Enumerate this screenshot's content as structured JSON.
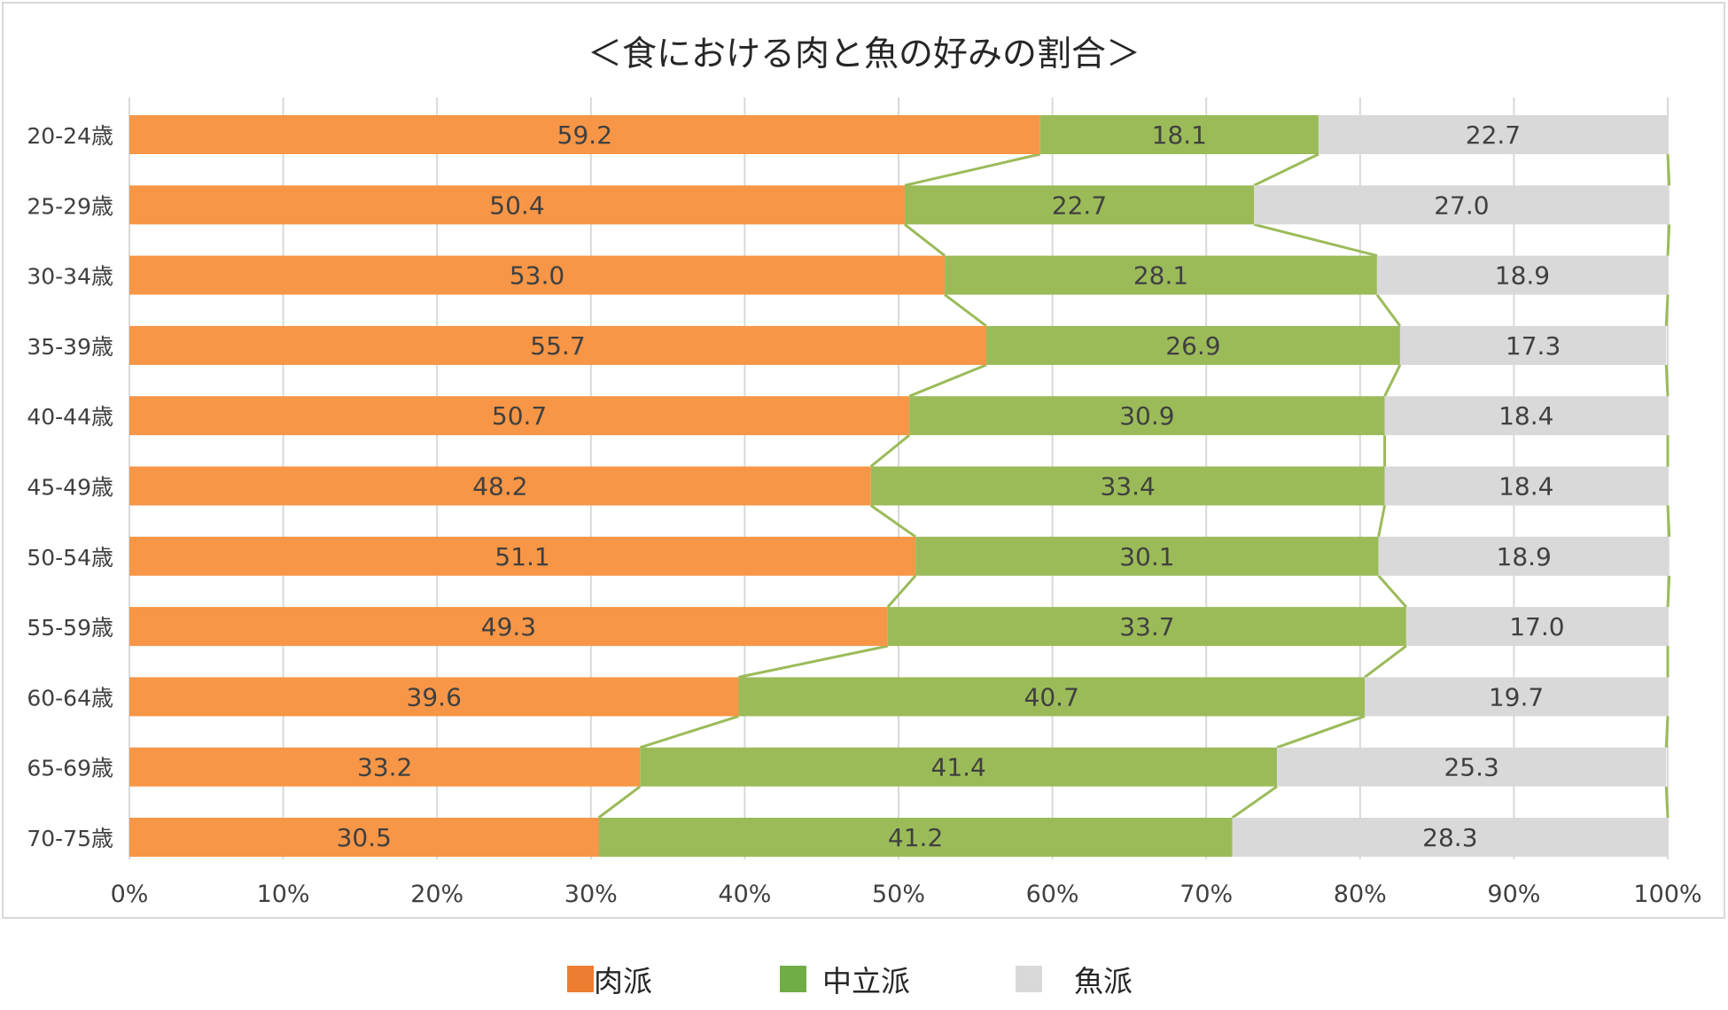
{
  "chart_data": {
    "type": "bar",
    "orientation": "horizontal",
    "stacking": "percent",
    "title": "＜食における肉と魚の好みの割合＞",
    "categories": [
      "20-24歳",
      "25-29歳",
      "30-34歳",
      "35-39歳",
      "40-44歳",
      "45-49歳",
      "50-54歳",
      "55-59歳",
      "60-64歳",
      "65-69歳",
      "70-75歳"
    ],
    "series": [
      {
        "name": "肉派",
        "color": "#f79646",
        "values": [
          59.2,
          50.4,
          53.0,
          55.7,
          50.7,
          48.2,
          51.1,
          49.3,
          39.6,
          33.2,
          30.5
        ],
        "labels": [
          "59.2",
          "50.4",
          "53.0",
          "55.7",
          "50.7",
          "48.2",
          "51.1",
          "49.3",
          "39.6",
          "33.2",
          "30.5"
        ]
      },
      {
        "name": "中立派",
        "color": "#9bbb59",
        "values": [
          18.1,
          22.7,
          28.1,
          26.9,
          30.9,
          33.4,
          30.1,
          33.7,
          40.7,
          41.4,
          41.2
        ],
        "labels": [
          "18.1",
          "22.7",
          "28.1",
          "26.9",
          "30.9",
          "33.4",
          "30.1",
          "33.7",
          "40.7",
          "41.4",
          "41.2"
        ]
      },
      {
        "name": "魚派",
        "color": "#d9d9d9",
        "values": [
          22.7,
          27.0,
          18.9,
          17.3,
          18.4,
          18.4,
          18.9,
          17.0,
          19.7,
          25.3,
          28.3
        ],
        "labels": [
          "22.7",
          "27.0",
          "18.9",
          "17.3",
          "18.4",
          "18.4",
          "18.9",
          "17.0",
          "19.7",
          "25.3",
          "28.3"
        ]
      }
    ],
    "xlim": [
      0,
      100
    ],
    "xticks": [
      "0%",
      "10%",
      "20%",
      "30%",
      "40%",
      "50%",
      "60%",
      "70%",
      "80%",
      "90%",
      "100%"
    ],
    "series_lines": true,
    "series_line_color": "#9bbb59",
    "grid": true,
    "legend_position": "bottom"
  },
  "legend": {
    "items": [
      {
        "label": "肉派",
        "color": "#ed7d31"
      },
      {
        "label": "中立派",
        "color": "#70ad47"
      },
      {
        "label": "魚派",
        "color": "#d9d9d9"
      }
    ]
  }
}
